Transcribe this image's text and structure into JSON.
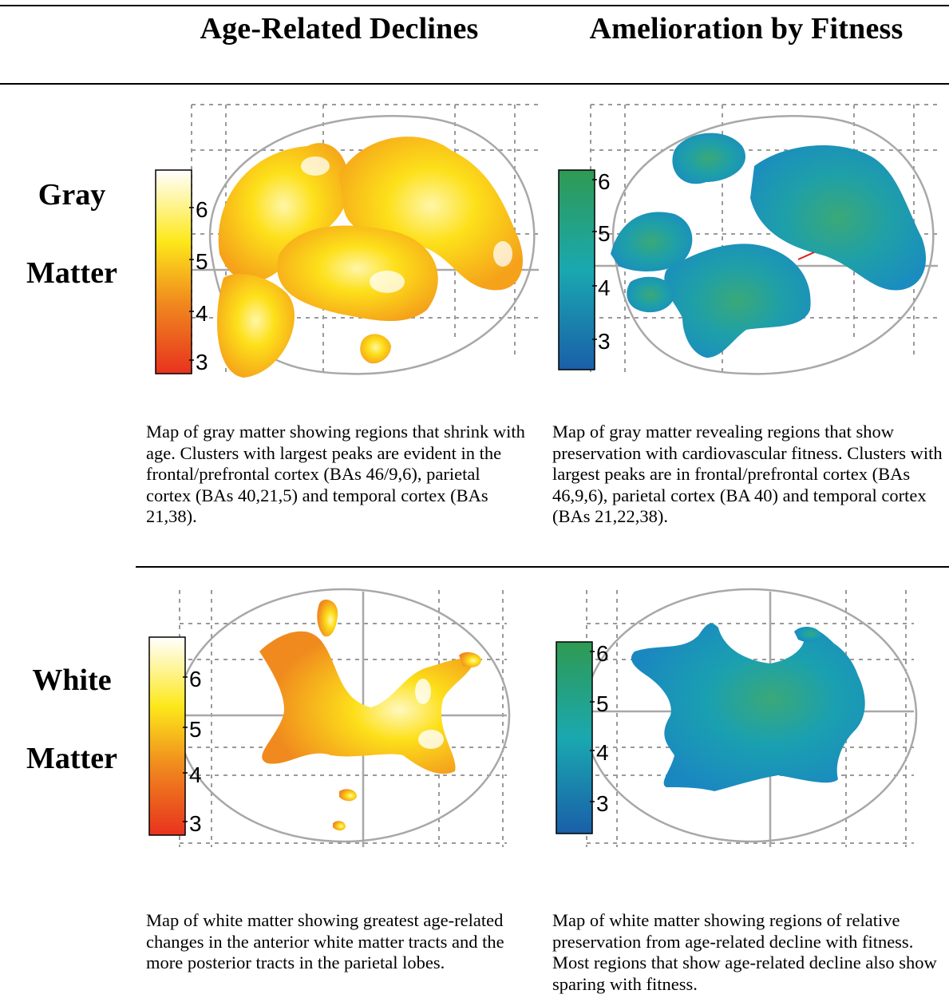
{
  "columns": [
    {
      "title": "Age-Related Declines"
    },
    {
      "title": "Amelioration by Fitness"
    }
  ],
  "rows": [
    {
      "label_line1": "Gray",
      "label_line2": "Matter"
    },
    {
      "label_line1": "White",
      "label_line2": "Matter"
    }
  ],
  "panels": {
    "gray_age": {
      "colormap": "hot",
      "colorbar_ticks": [
        "6",
        "5",
        "4",
        "3"
      ],
      "caption": "Map of gray matter showing regions that shrink with age.  Clusters with largest peaks are evident in the frontal/prefrontal cortex (BAs 46/9,6), parietal cortex (BAs 40,21,5) and temporal cortex (BAs 21,38)."
    },
    "gray_fit": {
      "colormap": "winter",
      "colorbar_ticks": [
        "6",
        "5",
        "4",
        "3"
      ],
      "caption": "Map of gray matter revealing regions that show preservation with cardiovascular fitness. Clusters with largest peaks are in frontal/prefrontal cortex (BAs 46,9,6), parietal cortex (BA 40) and temporal cortex (BAs 21,22,38)."
    },
    "white_age": {
      "colormap": "hot",
      "colorbar_ticks": [
        "6",
        "5",
        "4",
        "3"
      ],
      "caption": "Map of white matter showing greatest age-related changes in the anterior white matter tracts and the more posterior tracts in the parietal lobes."
    },
    "white_fit": {
      "colormap": "winter",
      "colorbar_ticks": [
        "6",
        "5",
        "4",
        "3"
      ],
      "caption": "Map of white matter showing regions of relative preservation from age-related decline with fitness. Most regions that show age-related decline also show sparing with fitness."
    }
  },
  "colors": {
    "hot_low": "#e8321e",
    "hot_mid": "#f5a11a",
    "hot_high": "#fde81a",
    "hot_top": "#ffffff",
    "fit_low": "#1a5fa8",
    "fit_mid": "#1aa0b8",
    "fit_high": "#2fa05a",
    "grid": "#9a9a9a"
  }
}
